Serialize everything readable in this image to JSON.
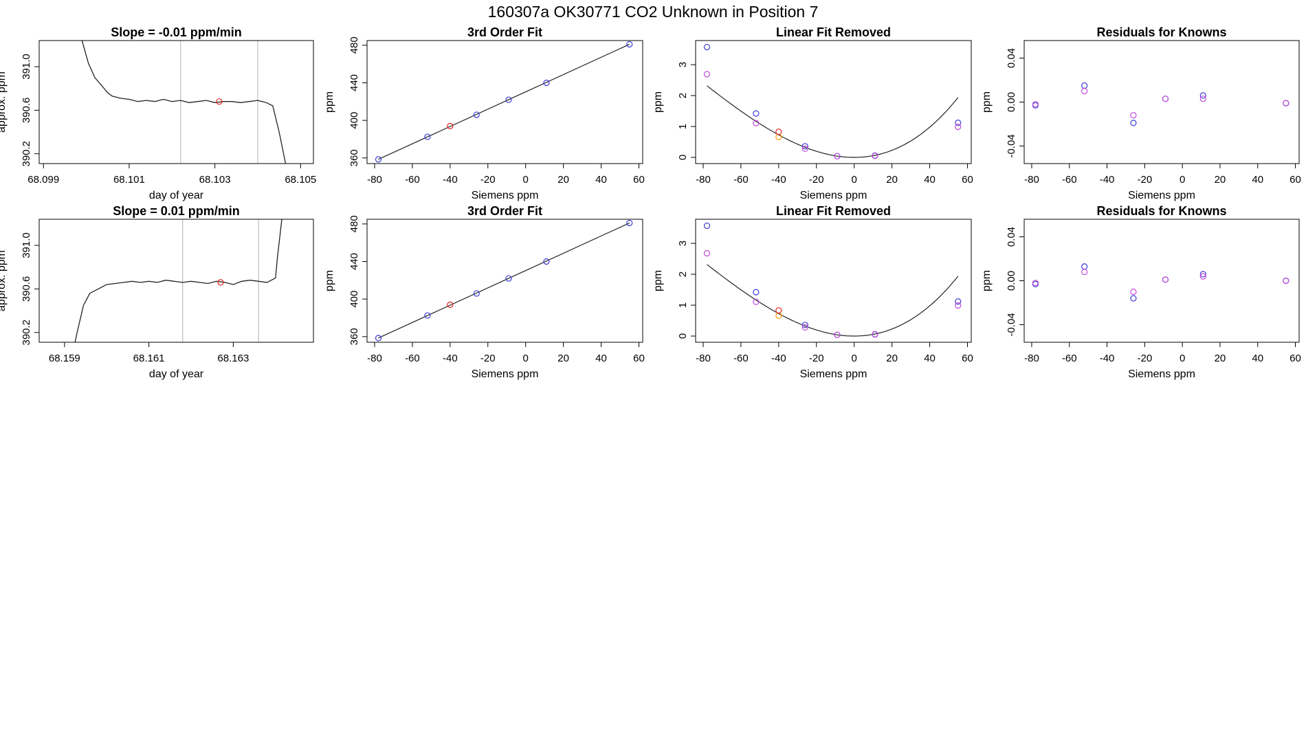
{
  "figure_title": "160307a     OK30771   CO2 Unknown in Position  7",
  "colors": {
    "series_a": "#3b3bd6",
    "series_b": "#c24ad8",
    "highlight": "#e02020",
    "extra": "#ff9900",
    "line": "#222222",
    "vline": "#bdbdbd"
  },
  "chart_data": [
    {
      "type": "line",
      "title": "Slope =  -0.01  ppm/min",
      "xlabel": "day of year",
      "ylabel": "approx. ppm",
      "xlim": [
        68.0989,
        68.1053
      ],
      "ylim": [
        390.11,
        391.24
      ],
      "xticks": [
        68.099,
        68.101,
        68.103,
        68.105
      ],
      "xtick_labels": [
        "68.099",
        "68.101",
        "68.103",
        "68.105"
      ],
      "yticks": [
        390.2,
        390.6,
        391.0
      ],
      "ytick_labels": [
        "390.2",
        "390.6",
        "391.0"
      ],
      "vlines": [
        68.1022,
        68.104
      ],
      "series": [
        {
          "x": [
            68.0999,
            68.10005,
            68.1002,
            68.10035,
            68.1005,
            68.1006,
            68.1007,
            68.1008,
            68.101,
            68.1012,
            68.1014,
            68.1016,
            68.1018,
            68.102,
            68.1022,
            68.1024,
            68.1026,
            68.1028,
            68.103,
            68.1032,
            68.1034,
            68.1036,
            68.1038,
            68.104,
            68.1042,
            68.10435,
            68.1045,
            68.10465
          ],
          "y": [
            391.24,
            391.03,
            390.9,
            390.83,
            390.76,
            390.73,
            390.72,
            390.71,
            390.7,
            390.68,
            390.69,
            390.68,
            390.7,
            390.68,
            390.69,
            390.67,
            390.68,
            390.69,
            390.67,
            390.68,
            390.68,
            390.67,
            390.68,
            390.69,
            390.67,
            390.64,
            390.4,
            390.11
          ]
        }
      ],
      "highlight_points": [
        {
          "x": 68.1031,
          "y": 390.68
        }
      ]
    },
    {
      "type": "scatter",
      "title": "3rd Order Fit",
      "xlabel": "Siemens ppm",
      "ylabel": "ppm",
      "xlim": [
        -84,
        62
      ],
      "ylim": [
        354,
        485
      ],
      "xticks": [
        -80,
        -60,
        -40,
        -20,
        0,
        20,
        40,
        60
      ],
      "xtick_labels": [
        "-80",
        "-60",
        "-40",
        "-20",
        "0",
        "20",
        "40",
        "60"
      ],
      "yticks": [
        360,
        400,
        440,
        480
      ],
      "ytick_labels": [
        "360",
        "400",
        "440",
        "480"
      ],
      "line": {
        "x": [
          -78,
          55
        ],
        "y": [
          358.5,
          481
        ]
      },
      "series": [
        {
          "x": [
            -78,
            -52,
            -26,
            -9,
            11,
            55
          ],
          "y": [
            358.5,
            382.5,
            406,
            422,
            440,
            481
          ]
        }
      ],
      "highlight_points": [
        {
          "x": -40,
          "y": 394
        }
      ]
    },
    {
      "type": "scatter",
      "title": "Linear Fit Removed",
      "xlabel": "Siemens ppm",
      "ylabel": "ppm",
      "xlim": [
        -84,
        62
      ],
      "ylim": [
        -0.2,
        3.78
      ],
      "xticks": [
        -80,
        -60,
        -40,
        -20,
        0,
        20,
        40,
        60
      ],
      "xtick_labels": [
        "-80",
        "-60",
        "-40",
        "-20",
        "0",
        "20",
        "40",
        "60"
      ],
      "yticks": [
        0,
        1,
        2,
        3
      ],
      "ytick_labels": [
        "0",
        "1",
        "2",
        "3"
      ],
      "curve_coeffs": [
        0,
        0,
        0.000533,
        1.95e-06
      ],
      "curve_xrange": [
        -78,
        55
      ],
      "series": [
        {
          "x": [
            -78,
            -52,
            -26,
            -9,
            11,
            55
          ],
          "y": [
            3.57,
            1.42,
            0.36,
            0.04,
            0.06,
            1.12
          ]
        },
        {
          "x": [
            -78,
            -52,
            -26,
            -9,
            11,
            55
          ],
          "y": [
            2.69,
            1.11,
            0.28,
            0.04,
            0.05,
            0.99
          ]
        }
      ],
      "highlight_points": [
        {
          "x": -40,
          "y": 0.83
        }
      ],
      "extra_points": [
        {
          "x": -40,
          "y": 0.66
        }
      ]
    },
    {
      "type": "scatter",
      "title": "Residuals for Knowns",
      "xlabel": "Siemens ppm",
      "ylabel": "ppm",
      "xlim": [
        -84,
        62
      ],
      "ylim": [
        -0.056,
        0.056
      ],
      "xticks": [
        -80,
        -60,
        -40,
        -20,
        0,
        20,
        40,
        60
      ],
      "xtick_labels": [
        "-80",
        "-60",
        "-40",
        "-20",
        "0",
        "20",
        "40",
        "60"
      ],
      "yticks": [
        -0.04,
        0.0,
        0.04
      ],
      "ytick_labels": [
        "-0.04",
        "0.00",
        "0.04"
      ],
      "series": [
        {
          "x": [
            -78,
            -52,
            -26,
            -9,
            11,
            55
          ],
          "y": [
            -0.003,
            0.015,
            -0.019,
            0.003,
            0.006,
            -0.001
          ]
        },
        {
          "x": [
            -78,
            -52,
            -26,
            -9,
            11,
            55
          ],
          "y": [
            -0.002,
            0.01,
            -0.012,
            0.003,
            0.003,
            -0.001
          ]
        }
      ]
    },
    {
      "type": "line",
      "title": "Slope =  0.01  ppm/min",
      "xlabel": "day of year",
      "ylabel": "approx. ppm",
      "xlim": [
        68.1584,
        68.1649
      ],
      "ylim": [
        390.11,
        391.24
      ],
      "xticks": [
        68.159,
        68.161,
        68.163
      ],
      "xtick_labels": [
        "68.159",
        "68.161",
        "68.163"
      ],
      "yticks": [
        390.2,
        390.6,
        391.0
      ],
      "ytick_labels": [
        "390.2",
        "390.6",
        "391.0"
      ],
      "vlines": [
        68.1618,
        68.1636
      ],
      "series": [
        {
          "x": [
            68.15925,
            68.1593,
            68.15945,
            68.1596,
            68.1598,
            68.16,
            68.1602,
            68.1604,
            68.1606,
            68.1608,
            68.161,
            68.1612,
            68.1614,
            68.1616,
            68.1618,
            68.162,
            68.1622,
            68.1624,
            68.1626,
            68.1628,
            68.163,
            68.1632,
            68.1634,
            68.1636,
            68.1638,
            68.164,
            68.16405,
            68.16415
          ],
          "y": [
            390.11,
            390.2,
            390.45,
            390.56,
            390.6,
            390.64,
            390.65,
            390.66,
            390.67,
            390.66,
            390.67,
            390.66,
            390.68,
            390.67,
            390.66,
            390.67,
            390.66,
            390.65,
            390.67,
            390.66,
            390.64,
            390.67,
            390.68,
            390.67,
            390.66,
            390.7,
            390.9,
            391.24
          ]
        }
      ],
      "highlight_points": [
        {
          "x": 68.1627,
          "y": 390.66
        }
      ]
    },
    {
      "type": "scatter",
      "title": "3rd Order Fit",
      "xlabel": "Siemens ppm",
      "ylabel": "ppm",
      "xlim": [
        -84,
        62
      ],
      "ylim": [
        354,
        485
      ],
      "xticks": [
        -80,
        -60,
        -40,
        -20,
        0,
        20,
        40,
        60
      ],
      "xtick_labels": [
        "-80",
        "-60",
        "-40",
        "-20",
        "0",
        "20",
        "40",
        "60"
      ],
      "yticks": [
        360,
        400,
        440,
        480
      ],
      "ytick_labels": [
        "360",
        "400",
        "440",
        "480"
      ],
      "line": {
        "x": [
          -78,
          55
        ],
        "y": [
          358.5,
          481
        ]
      },
      "series": [
        {
          "x": [
            -78,
            -52,
            -26,
            -9,
            11,
            55
          ],
          "y": [
            358.5,
            382.5,
            406,
            422,
            440,
            481
          ]
        }
      ],
      "highlight_points": [
        {
          "x": -40,
          "y": 394
        }
      ]
    },
    {
      "type": "scatter",
      "title": "Linear Fit Removed",
      "xlabel": "Siemens ppm",
      "ylabel": "ppm",
      "xlim": [
        -84,
        62
      ],
      "ylim": [
        -0.2,
        3.78
      ],
      "xticks": [
        -80,
        -60,
        -40,
        -20,
        0,
        20,
        40,
        60
      ],
      "xtick_labels": [
        "-80",
        "-60",
        "-40",
        "-20",
        "0",
        "20",
        "40",
        "60"
      ],
      "yticks": [
        0,
        1,
        2,
        3
      ],
      "ytick_labels": [
        "0",
        "1",
        "2",
        "3"
      ],
      "curve_coeffs": [
        0,
        0,
        0.000533,
        1.95e-06
      ],
      "curve_xrange": [
        -78,
        55
      ],
      "series": [
        {
          "x": [
            -78,
            -52,
            -26,
            -9,
            11,
            55
          ],
          "y": [
            3.57,
            1.42,
            0.36,
            0.04,
            0.06,
            1.12
          ]
        },
        {
          "x": [
            -78,
            -52,
            -26,
            -9,
            11,
            55
          ],
          "y": [
            2.68,
            1.11,
            0.28,
            0.04,
            0.05,
            0.99
          ]
        }
      ],
      "highlight_points": [
        {
          "x": -40,
          "y": 0.83
        }
      ],
      "extra_points": [
        {
          "x": -40,
          "y": 0.66
        }
      ]
    },
    {
      "type": "scatter",
      "title": "Residuals for Knowns",
      "xlabel": "Siemens ppm",
      "ylabel": "ppm",
      "xlim": [
        -84,
        62
      ],
      "ylim": [
        -0.056,
        0.056
      ],
      "xticks": [
        -80,
        -60,
        -40,
        -20,
        0,
        20,
        40,
        60
      ],
      "xtick_labels": [
        "-80",
        "-60",
        "-40",
        "-20",
        "0",
        "20",
        "40",
        "60"
      ],
      "yticks": [
        -0.04,
        0.0,
        0.04
      ],
      "ytick_labels": [
        "-0.04",
        "0.00",
        "0.04"
      ],
      "series": [
        {
          "x": [
            -78,
            -52,
            -26,
            -9,
            11,
            55
          ],
          "y": [
            -0.003,
            0.013,
            -0.016,
            0.001,
            0.006,
            0.0
          ]
        },
        {
          "x": [
            -78,
            -52,
            -26,
            -9,
            11,
            55
          ],
          "y": [
            -0.002,
            0.008,
            -0.01,
            0.001,
            0.004,
            0.0
          ]
        }
      ]
    }
  ]
}
